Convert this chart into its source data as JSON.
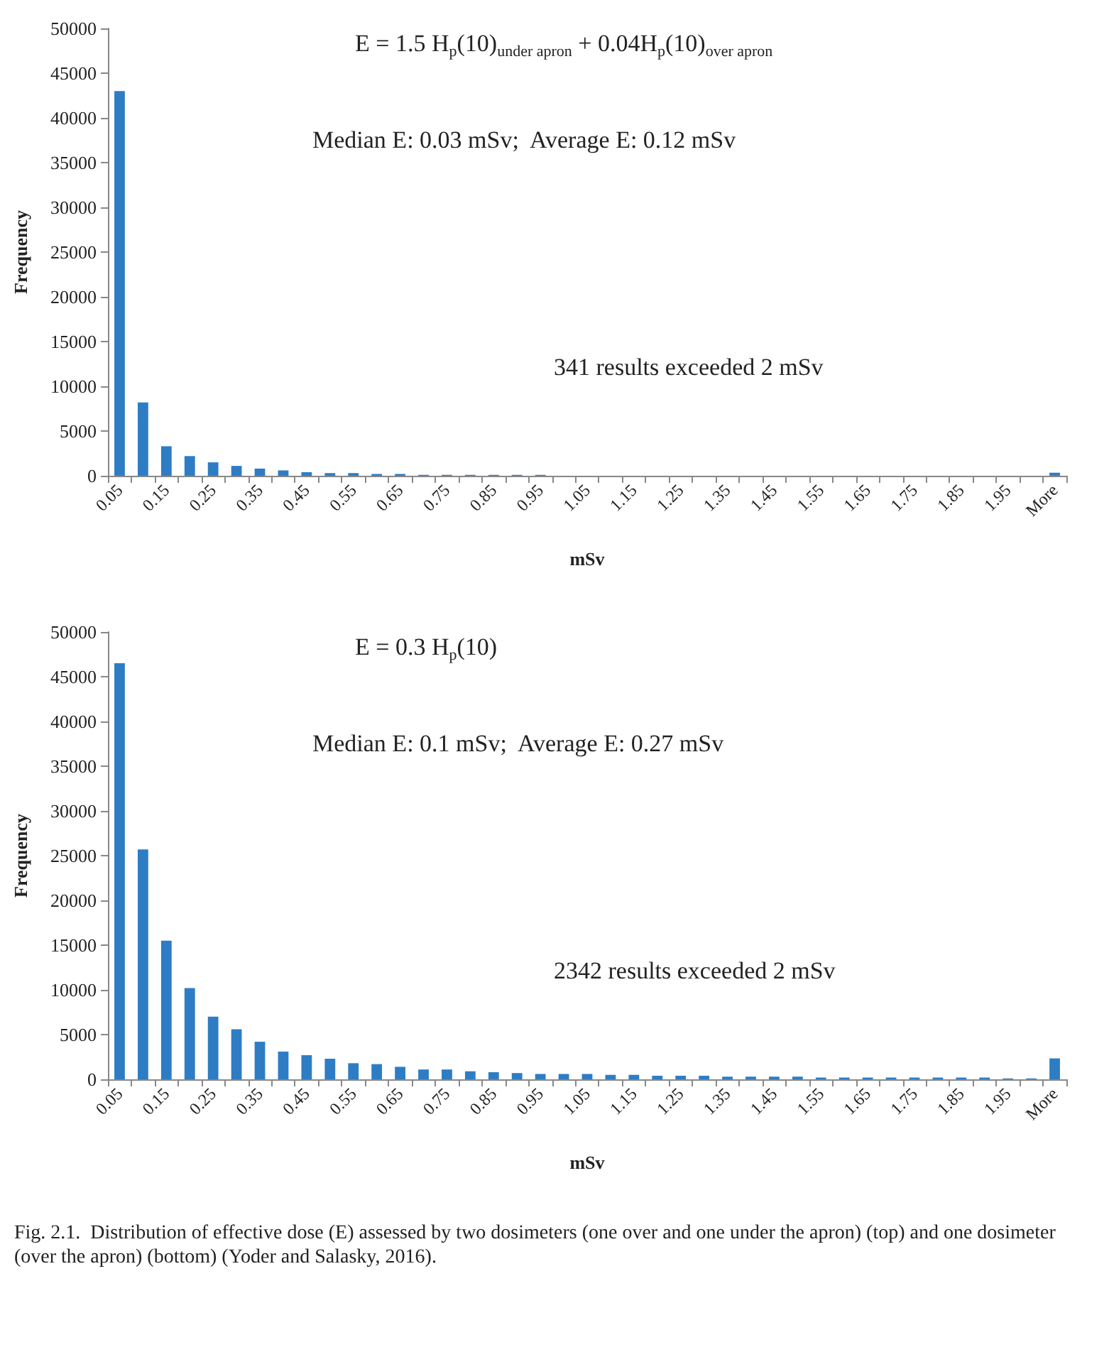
{
  "chart_data": [
    {
      "type": "bar",
      "xlabel": "mSv",
      "ylabel": "Frequency",
      "color": "#2e7dc4",
      "ylim": [
        0,
        50000
      ],
      "yticks": [
        0,
        5000,
        10000,
        15000,
        20000,
        25000,
        30000,
        35000,
        40000,
        45000,
        50000
      ],
      "grid": false,
      "categories": [
        "0.05",
        null,
        "0.15",
        null,
        "0.25",
        null,
        "0.35",
        null,
        "0.45",
        null,
        "0.55",
        null,
        "0.65",
        null,
        "0.75",
        null,
        "0.85",
        null,
        "0.95",
        null,
        "1.05",
        null,
        "1.15",
        null,
        "1.25",
        null,
        "1.35",
        null,
        "1.45",
        null,
        "1.55",
        null,
        "1.65",
        null,
        "1.75",
        null,
        "1.85",
        null,
        "1.95",
        null,
        "More"
      ],
      "values": [
        43000,
        8200,
        3300,
        2200,
        1500,
        1100,
        800,
        600,
        400,
        300,
        300,
        200,
        200,
        100,
        100,
        100,
        100,
        100,
        100,
        0,
        0,
        0,
        0,
        0,
        0,
        0,
        0,
        0,
        0,
        0,
        0,
        0,
        0,
        0,
        0,
        0,
        0,
        0,
        0,
        0,
        341
      ],
      "annotations": [
        "E = 1.5 H$_{p}$(10)$_{under apron}$ + 0.04H$_{p}$(10)$_{over apron}$",
        "Median E: 0.03 mSv;  Average E: 0.12 mSv",
        "341 results exceeded 2 mSv"
      ]
    },
    {
      "type": "bar",
      "xlabel": "mSv",
      "ylabel": "Frequency",
      "color": "#2e7dc4",
      "ylim": [
        0,
        50000
      ],
      "yticks": [
        0,
        5000,
        10000,
        15000,
        20000,
        25000,
        30000,
        35000,
        40000,
        45000,
        50000
      ],
      "grid": false,
      "categories": [
        "0.05",
        null,
        "0.15",
        null,
        "0.25",
        null,
        "0.35",
        null,
        "0.45",
        null,
        "0.55",
        null,
        "0.65",
        null,
        "0.75",
        null,
        "0.85",
        null,
        "0.95",
        null,
        "1.05",
        null,
        "1.15",
        null,
        "1.25",
        null,
        "1.35",
        null,
        "1.45",
        null,
        "1.55",
        null,
        "1.65",
        null,
        "1.75",
        null,
        "1.85",
        null,
        "1.95",
        null,
        "More"
      ],
      "values": [
        46500,
        25700,
        15500,
        10200,
        7000,
        5600,
        4200,
        3100,
        2700,
        2300,
        1800,
        1700,
        1400,
        1100,
        1100,
        900,
        800,
        700,
        600,
        600,
        600,
        500,
        500,
        400,
        400,
        400,
        300,
        300,
        300,
        300,
        200,
        200,
        200,
        200,
        200,
        200,
        200,
        200,
        100,
        100,
        2342
      ],
      "annotations": [
        "E = 0.3 H$_{p}$(10)",
        "Median E: 0.1 mSv;  Average E: 0.27 mSv",
        "2342 results exceeded 2 mSv",
        "Fig. 2.1.  Distribution of effective dose (E) assessed by two dosimeters (one over and one under the apron) (top) and one dosimeter (over the apron) (bottom) (Yoder and Salasky, 2016)."
      ]
    }
  ]
}
